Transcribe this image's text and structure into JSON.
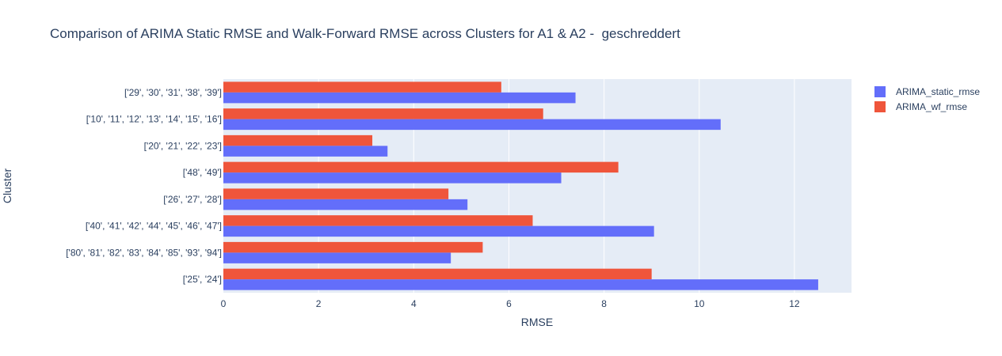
{
  "chart_data": {
    "type": "bar",
    "orientation": "horizontal",
    "barmode": "group",
    "title": "Comparison of ARIMA Static RMSE and Walk-Forward RMSE across Clusters for A1 & A2 -  geschreddert",
    "xlabel": "RMSE",
    "ylabel": "Cluster",
    "xlim": [
      0,
      13.2
    ],
    "xticks": [
      0,
      2,
      4,
      6,
      8,
      10,
      12
    ],
    "grid": true,
    "legend_position": "top-right",
    "categories": [
      "['29', '30', '31', '38', '39']",
      "['10', '11', '12', '13', '14', '15', '16']",
      "['20', '21', '22', '23']",
      "['48', '49']",
      "['26', '27', '28']",
      "['40', '41', '42', '44', '45', '46', '47']",
      "['80', '81', '82', '83', '84', '85', '93', '94']",
      "['25', '24']"
    ],
    "series": [
      {
        "name": "ARIMA_static_rmse",
        "color": "#636efa",
        "values": [
          7.4,
          10.45,
          3.45,
          7.1,
          5.13,
          9.05,
          4.78,
          12.5
        ]
      },
      {
        "name": "ARIMA_wf_rmse",
        "color": "#ef553b",
        "values": [
          5.84,
          6.72,
          3.13,
          8.3,
          4.73,
          6.5,
          5.45,
          9.0
        ]
      }
    ]
  }
}
